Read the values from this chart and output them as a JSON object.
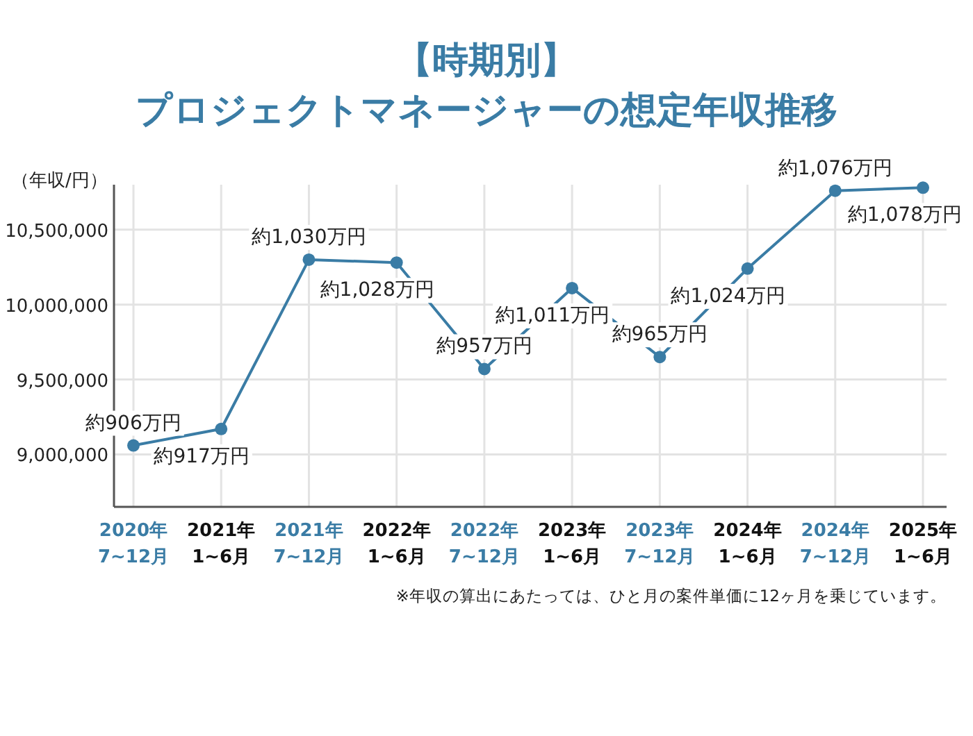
{
  "chart_data": {
    "type": "line",
    "title": "【時期別】プロジェクトマネージャーの想定年収推移",
    "ylabel": "（年収/円）",
    "categories": [
      "2020年\n7~12月",
      "2021年\n1~6月",
      "2021年\n7~12月",
      "2022年\n1~6月",
      "2022年\n7~12月",
      "2023年\n1~6月",
      "2023年\n7~12月",
      "2024年\n1~6月",
      "2024年\n7~12月",
      "2025年\n1~6月"
    ],
    "series": [
      {
        "color": "#3a7ca5",
        "values": [
          9060000,
          9170000,
          10300000,
          10280000,
          9570000,
          10110000,
          9650000,
          10240000,
          10760000,
          10780000
        ],
        "value_labels": [
          "約906万円",
          "約917万円",
          "約1,030万円",
          "約1,028万円",
          "約957万円",
          "約1,011万円",
          "約965万円",
          "約1,024万円",
          "約1,076万円",
          "約1,078万円"
        ]
      }
    ],
    "ylim": [
      8650000,
      10800000
    ],
    "yticks": [
      {
        "value": 9000000,
        "label": "9,000,000"
      },
      {
        "value": 9500000,
        "label": "9,500,000"
      },
      {
        "value": 10000000,
        "label": "10,000,000"
      },
      {
        "value": 10500000,
        "label": "10,500,000"
      }
    ],
    "grid": true,
    "marker": "circle",
    "line_style": "solid",
    "annotations": [
      "※年収の算出にあたっては、ひと月の案件単価に12ヶ月を乗じています。"
    ]
  }
}
